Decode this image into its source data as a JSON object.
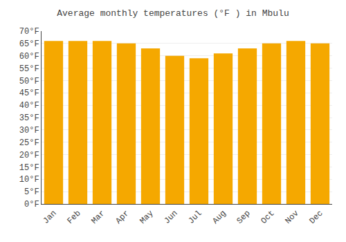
{
  "chart_data": {
    "type": "bar",
    "title": "Average monthly temperatures (°F ) in Mbulu",
    "categories": [
      "Jan",
      "Feb",
      "Mar",
      "Apr",
      "May",
      "Jun",
      "Jul",
      "Aug",
      "Sep",
      "Oct",
      "Nov",
      "Dec"
    ],
    "values": [
      66,
      66,
      66,
      65,
      63,
      60,
      59,
      61,
      63,
      65,
      66,
      65
    ],
    "color": "#F5A800",
    "ylim": [
      0,
      70
    ],
    "yticks": [
      {
        "value": 0,
        "label": "0°F"
      },
      {
        "value": 5,
        "label": "5°F"
      },
      {
        "value": 10,
        "label": "10°F"
      },
      {
        "value": 15,
        "label": "15°F"
      },
      {
        "value": 20,
        "label": "20°F"
      },
      {
        "value": 25,
        "label": "25°F"
      },
      {
        "value": 30,
        "label": "30°F"
      },
      {
        "value": 35,
        "label": "35°F"
      },
      {
        "value": 40,
        "label": "40°F"
      },
      {
        "value": 45,
        "label": "45°F"
      },
      {
        "value": 50,
        "label": "50°F"
      },
      {
        "value": 55,
        "label": "55°F"
      },
      {
        "value": 60,
        "label": "60°F"
      },
      {
        "value": 65,
        "label": "65°F"
      },
      {
        "value": 70,
        "label": "70°F"
      }
    ],
    "grid": true
  }
}
